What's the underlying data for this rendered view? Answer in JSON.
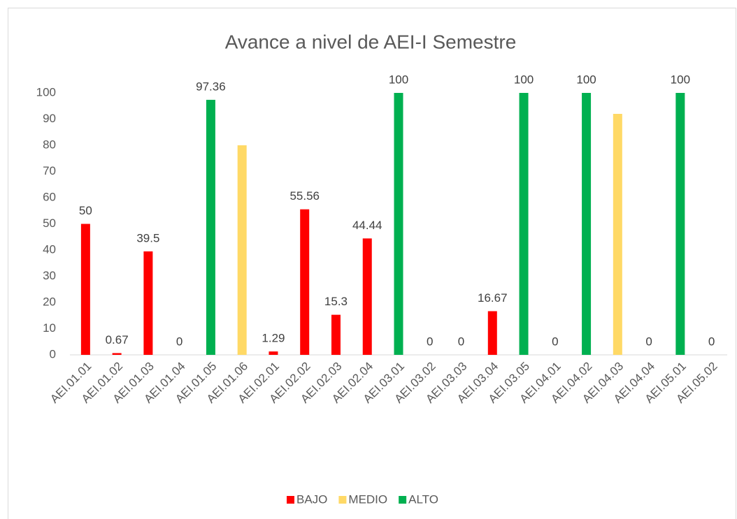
{
  "chart_data": {
    "type": "bar",
    "title": "Avance a nivel de AEI-I Semestre",
    "categories": [
      "AEI.01.01",
      "AEI.01.02",
      "AEI.01.03",
      "AEI.01.04",
      "AEI.01.05",
      "AEI.01.06",
      "AEI.02.01",
      "AEI.02.02",
      "AEI.02.03",
      "AEI.02.04",
      "AEI.03.01",
      "AEI.03.02",
      "AEI.03.03",
      "AEI.03.04",
      "AEI.03.05",
      "AEI.04.01",
      "AEI.04.02",
      "AEI.04.03",
      "AEI.04.04",
      "AEI.05.01",
      "AEI.05.02"
    ],
    "series": [
      {
        "name": "BAJO",
        "color": "#ff0000",
        "data_labels": true,
        "values": [
          50,
          0.67,
          39.5,
          0,
          null,
          null,
          1.29,
          55.56,
          15.3,
          44.44,
          null,
          0,
          0,
          16.67,
          null,
          0,
          null,
          null,
          0,
          null,
          0
        ]
      },
      {
        "name": "MEDIO",
        "color": "#ffd966",
        "data_labels": false,
        "values": [
          null,
          null,
          null,
          null,
          null,
          80,
          null,
          null,
          null,
          null,
          null,
          null,
          null,
          null,
          null,
          null,
          null,
          92,
          null,
          null,
          null
        ]
      },
      {
        "name": "ALTO",
        "color": "#00b050",
        "data_labels": true,
        "values": [
          null,
          null,
          null,
          null,
          97.36,
          null,
          null,
          null,
          null,
          null,
          100,
          null,
          null,
          null,
          100,
          null,
          100,
          null,
          null,
          100,
          null
        ]
      }
    ],
    "ylim": [
      0,
      100
    ],
    "yticks": [
      0,
      10,
      20,
      30,
      40,
      50,
      60,
      70,
      80,
      90,
      100
    ],
    "grid": false,
    "legend": "bottom"
  }
}
